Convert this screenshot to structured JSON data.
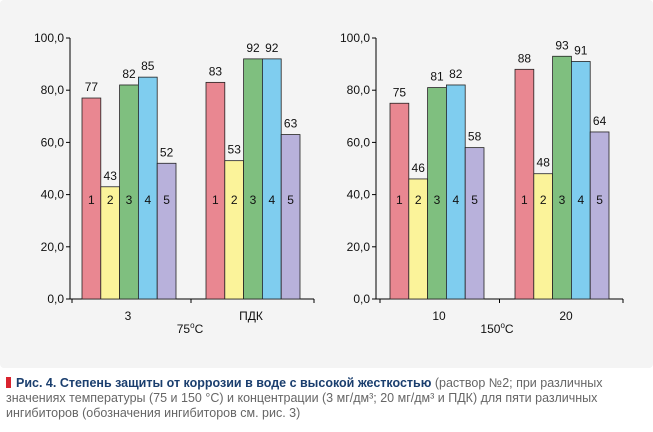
{
  "chart_data": [
    {
      "type": "bar",
      "categories": [
        "3",
        "ПДК"
      ],
      "group_label": "75°C",
      "group_label_base": "75",
      "group_label_unit": "C",
      "series_labels": [
        "1",
        "2",
        "3",
        "4",
        "5"
      ],
      "series": [
        {
          "values": [
            77,
            83
          ]
        },
        {
          "values": [
            43,
            53
          ]
        },
        {
          "values": [
            82,
            92
          ]
        },
        {
          "values": [
            85,
            92
          ]
        },
        {
          "values": [
            52,
            63
          ]
        }
      ],
      "ylim": [
        0,
        100
      ],
      "yticks": [
        "0,0",
        "20,0",
        "40,0",
        "60,0",
        "80,0",
        "100,0"
      ],
      "ytick_values": [
        0,
        20,
        40,
        60,
        80,
        100
      ],
      "grid": false
    },
    {
      "type": "bar",
      "categories": [
        "10",
        "20"
      ],
      "group_label": "150°C",
      "group_label_base": "150",
      "group_label_unit": "C",
      "series_labels": [
        "1",
        "2",
        "3",
        "4",
        "5"
      ],
      "series": [
        {
          "values": [
            75,
            88
          ]
        },
        {
          "values": [
            46,
            48
          ]
        },
        {
          "values": [
            81,
            93
          ]
        },
        {
          "values": [
            82,
            91
          ]
        },
        {
          "values": [
            58,
            64
          ]
        }
      ],
      "ylim": [
        0,
        100
      ],
      "yticks": [
        "0,0",
        "20,0",
        "40,0",
        "60,0",
        "80,0",
        "100,0"
      ],
      "ytick_values": [
        0,
        20,
        40,
        60,
        80,
        100
      ],
      "grid": false
    }
  ],
  "series_colors": [
    "#e98791",
    "#fbf39a",
    "#7fbf7f",
    "#7fcdef",
    "#b8b1db"
  ],
  "caption": {
    "bold": "Рис. 4. Степень защиты от коррозии в воде с высокой жесткостью",
    "text": " (раствор №2; при различных значениях температуры (75 и 150 °С) и концентрации (3 мг/дм³; 20 мг/дм³ и ПДК) для пяти различных ингибиторов (обозначения ингибиторов см. рис. 3)"
  }
}
